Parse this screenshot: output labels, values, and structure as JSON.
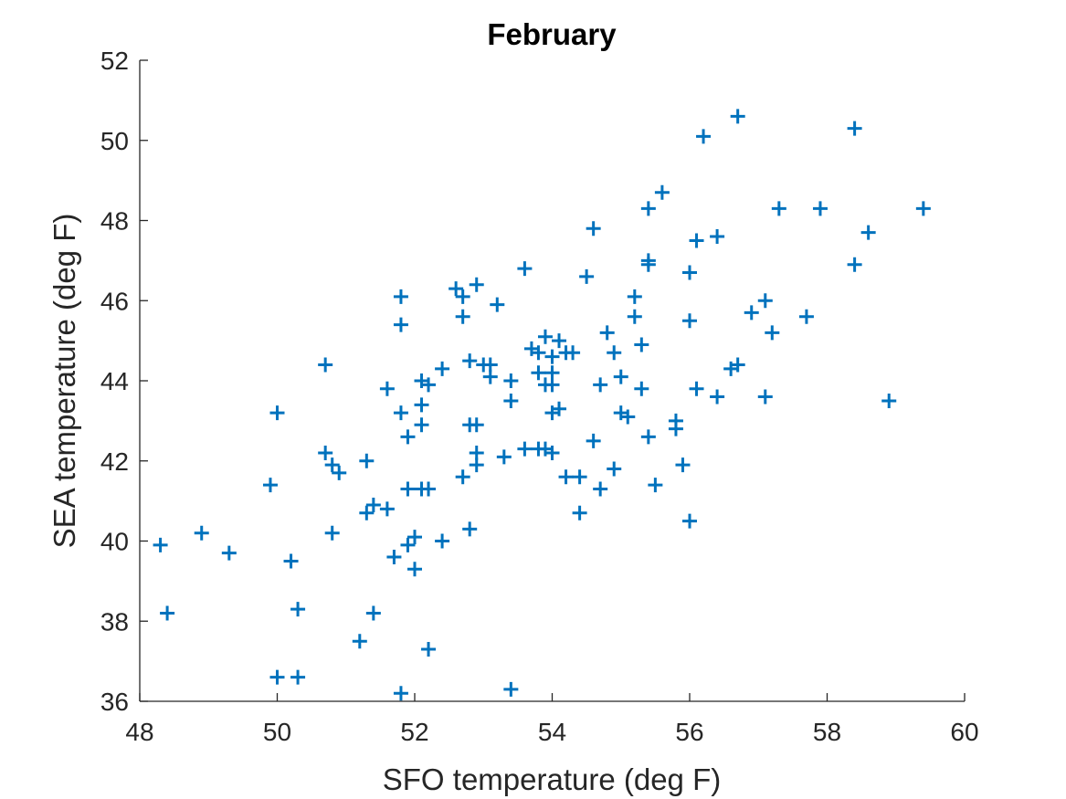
{
  "chart_data": {
    "type": "scatter",
    "title": "February",
    "xlabel": "SFO temperature (deg F)",
    "ylabel": "SEA temperature (deg F)",
    "xlim": [
      48,
      60
    ],
    "ylim": [
      36,
      52
    ],
    "xticks": [
      48,
      50,
      52,
      54,
      56,
      58,
      60
    ],
    "yticks": [
      36,
      38,
      40,
      42,
      44,
      46,
      48,
      50,
      52
    ],
    "xtick_labels": [
      "48",
      "50",
      "52",
      "54",
      "56",
      "58",
      "60"
    ],
    "ytick_labels": [
      "36",
      "38",
      "40",
      "42",
      "44",
      "46",
      "48",
      "50",
      "52"
    ],
    "marker": "+",
    "marker_color": "#0072BD",
    "grid": false,
    "points": [
      [
        48.3,
        39.9
      ],
      [
        48.4,
        38.2
      ],
      [
        48.9,
        40.2
      ],
      [
        49.3,
        39.7
      ],
      [
        49.9,
        41.4
      ],
      [
        50.0,
        43.2
      ],
      [
        50.0,
        36.6
      ],
      [
        50.2,
        39.5
      ],
      [
        50.3,
        38.3
      ],
      [
        50.3,
        36.6
      ],
      [
        50.7,
        44.4
      ],
      [
        50.7,
        42.2
      ],
      [
        50.8,
        41.9
      ],
      [
        50.8,
        40.2
      ],
      [
        50.9,
        41.7
      ],
      [
        51.2,
        37.5
      ],
      [
        51.3,
        42.0
      ],
      [
        51.3,
        40.7
      ],
      [
        51.4,
        40.9
      ],
      [
        51.4,
        38.2
      ],
      [
        51.6,
        43.8
      ],
      [
        51.6,
        40.8
      ],
      [
        51.7,
        39.6
      ],
      [
        51.8,
        46.1
      ],
      [
        51.8,
        45.4
      ],
      [
        51.8,
        43.2
      ],
      [
        51.8,
        36.2
      ],
      [
        51.9,
        42.6
      ],
      [
        51.9,
        41.3
      ],
      [
        51.9,
        39.9
      ],
      [
        52.0,
        40.1
      ],
      [
        52.0,
        39.3
      ],
      [
        52.1,
        44.0
      ],
      [
        52.1,
        43.4
      ],
      [
        52.1,
        42.9
      ],
      [
        52.1,
        41.3
      ],
      [
        52.2,
        43.9
      ],
      [
        52.2,
        41.3
      ],
      [
        52.2,
        37.3
      ],
      [
        52.4,
        44.3
      ],
      [
        52.4,
        40.0
      ],
      [
        52.6,
        46.3
      ],
      [
        52.7,
        46.1
      ],
      [
        52.7,
        45.6
      ],
      [
        52.7,
        41.6
      ],
      [
        52.8,
        44.5
      ],
      [
        52.8,
        42.9
      ],
      [
        52.8,
        40.3
      ],
      [
        52.9,
        46.4
      ],
      [
        52.9,
        42.9
      ],
      [
        52.9,
        42.2
      ],
      [
        52.9,
        41.9
      ],
      [
        53.0,
        44.4
      ],
      [
        53.1,
        44.4
      ],
      [
        53.1,
        44.1
      ],
      [
        53.2,
        45.9
      ],
      [
        53.3,
        42.1
      ],
      [
        53.4,
        44.0
      ],
      [
        53.4,
        43.5
      ],
      [
        53.4,
        36.3
      ],
      [
        53.6,
        46.8
      ],
      [
        53.6,
        42.3
      ],
      [
        53.7,
        44.8
      ],
      [
        53.8,
        44.7
      ],
      [
        53.8,
        44.2
      ],
      [
        53.8,
        42.3
      ],
      [
        53.9,
        45.1
      ],
      [
        53.9,
        43.9
      ],
      [
        53.9,
        42.3
      ],
      [
        54.0,
        44.6
      ],
      [
        54.0,
        44.2
      ],
      [
        54.0,
        43.9
      ],
      [
        54.0,
        43.2
      ],
      [
        54.0,
        42.2
      ],
      [
        54.1,
        45.0
      ],
      [
        54.1,
        43.3
      ],
      [
        54.2,
        44.7
      ],
      [
        54.2,
        41.6
      ],
      [
        54.3,
        44.7
      ],
      [
        54.4,
        41.6
      ],
      [
        54.4,
        40.7
      ],
      [
        54.5,
        46.6
      ],
      [
        54.6,
        47.8
      ],
      [
        54.6,
        42.5
      ],
      [
        54.7,
        43.9
      ],
      [
        54.7,
        41.3
      ],
      [
        54.8,
        45.2
      ],
      [
        54.9,
        44.7
      ],
      [
        54.9,
        41.8
      ],
      [
        55.0,
        44.1
      ],
      [
        55.0,
        43.2
      ],
      [
        55.1,
        43.1
      ],
      [
        55.2,
        46.1
      ],
      [
        55.2,
        45.6
      ],
      [
        55.3,
        44.9
      ],
      [
        55.3,
        43.8
      ],
      [
        55.4,
        48.3
      ],
      [
        55.4,
        47.0
      ],
      [
        55.4,
        46.9
      ],
      [
        55.4,
        42.6
      ],
      [
        55.5,
        41.4
      ],
      [
        55.6,
        48.7
      ],
      [
        55.8,
        43.0
      ],
      [
        55.8,
        42.8
      ],
      [
        55.9,
        41.9
      ],
      [
        56.0,
        46.7
      ],
      [
        56.0,
        45.5
      ],
      [
        56.0,
        40.5
      ],
      [
        56.1,
        47.5
      ],
      [
        56.1,
        43.8
      ],
      [
        56.2,
        50.1
      ],
      [
        56.4,
        47.6
      ],
      [
        56.4,
        43.6
      ],
      [
        56.6,
        44.3
      ],
      [
        56.7,
        50.6
      ],
      [
        56.7,
        44.4
      ],
      [
        56.9,
        45.7
      ],
      [
        57.1,
        46.0
      ],
      [
        57.1,
        43.6
      ],
      [
        57.2,
        45.2
      ],
      [
        57.3,
        48.3
      ],
      [
        57.7,
        45.6
      ],
      [
        57.9,
        48.3
      ],
      [
        58.4,
        50.3
      ],
      [
        58.4,
        46.9
      ],
      [
        58.6,
        47.7
      ],
      [
        58.9,
        43.5
      ],
      [
        59.4,
        48.3
      ]
    ]
  }
}
